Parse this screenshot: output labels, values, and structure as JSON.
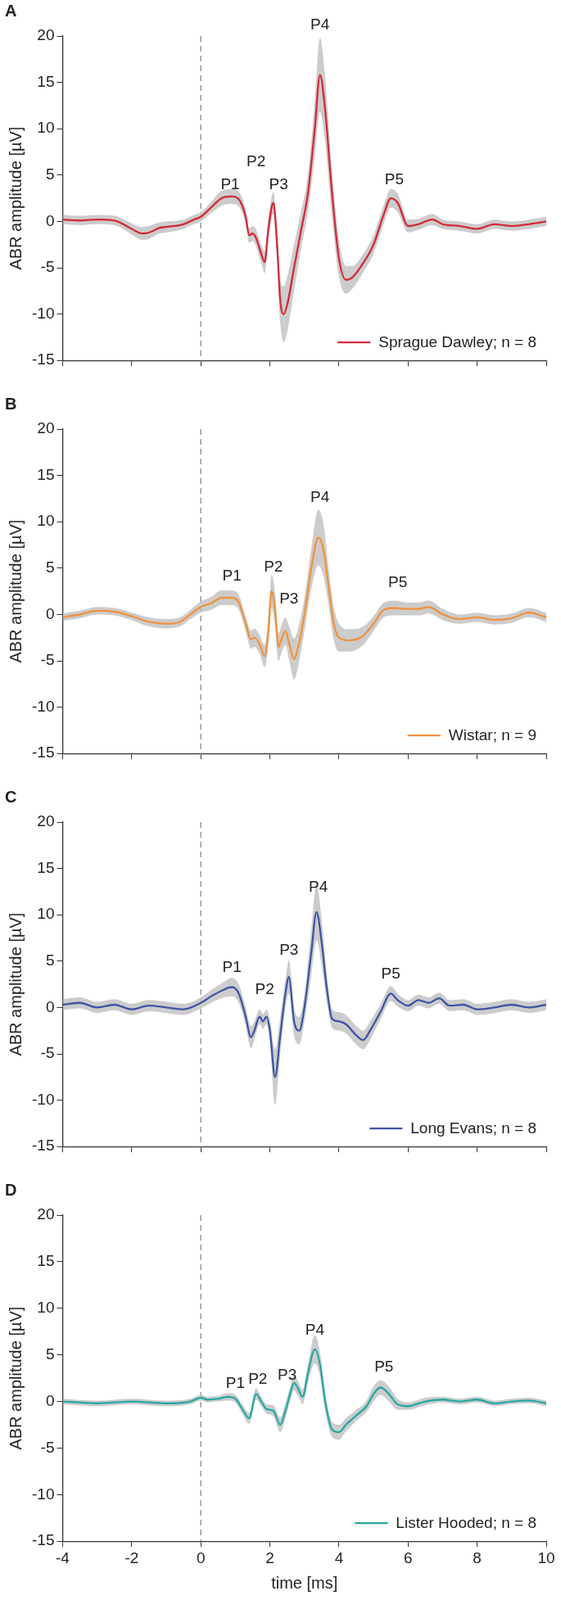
{
  "chart_data": [
    {
      "type": "line",
      "panel": "A",
      "ylabel": "ABR amplitude [µV]",
      "xlim": [
        -4,
        10
      ],
      "xticks": [
        -4,
        -2,
        0,
        2,
        4,
        6,
        8,
        10
      ],
      "ylim": [
        -15,
        20
      ],
      "yticks": [
        -15,
        -10,
        -5,
        0,
        5,
        10,
        15,
        20
      ],
      "grid": false,
      "legend": "lower right",
      "tick_labels": "y",
      "vlines": [
        0
      ],
      "x": [
        -4,
        -3.5,
        -3,
        -2.5,
        -2,
        -1.7,
        -1.5,
        -1.2,
        -1,
        -0.5,
        -0.2,
        0,
        0.3,
        0.6,
        0.9,
        1.1,
        1.3,
        1.4,
        1.5,
        1.6,
        1.75,
        1.85,
        1.95,
        2.05,
        2.1,
        2.2,
        2.3,
        2.4,
        2.5,
        2.7,
        2.9,
        3.1,
        3.3,
        3.45,
        3.6,
        3.8,
        4,
        4.2,
        4.4,
        4.7,
        5,
        5.3,
        5.5,
        5.7,
        6,
        6.3,
        6.7,
        7,
        7.5,
        8,
        8.5,
        9,
        9.5,
        10
      ],
      "series": [
        {
          "name": "Sprague Dawley; n = 8",
          "color": "#d42a36",
          "values": [
            0.2,
            0.1,
            0.2,
            0.1,
            -0.8,
            -1.3,
            -1.2,
            -0.7,
            -0.6,
            -0.3,
            0.2,
            0.5,
            1.5,
            2.5,
            2.7,
            2.4,
            0.5,
            -1.5,
            -1.3,
            -1.8,
            -3.5,
            -4.4,
            -1,
            1.5,
            2,
            -2,
            -8.5,
            -10,
            -9,
            -5,
            -1,
            3,
            10,
            15.8,
            12,
            3,
            -4,
            -6.3,
            -6,
            -4.5,
            -2.5,
            0.8,
            2.5,
            2,
            -0.5,
            -0.3,
            0.2,
            -0.3,
            -0.5,
            -0.8,
            -0.3,
            -0.5,
            -0.3,
            0
          ],
          "error": [
            0.5,
            0.5,
            0.5,
            0.5,
            0.6,
            0.7,
            0.7,
            0.6,
            0.6,
            0.5,
            0.5,
            0.5,
            0.6,
            0.8,
            0.8,
            0.8,
            0.8,
            0.8,
            0.8,
            0.9,
            1,
            1.2,
            1.2,
            1.2,
            1.2,
            1.5,
            2.5,
            3,
            3,
            2.5,
            2,
            2,
            3,
            4,
            3.5,
            2.5,
            2,
            1.5,
            1.2,
            1,
            1,
            1,
            1,
            1,
            0.7,
            0.6,
            0.6,
            0.5,
            0.5,
            0.5,
            0.5,
            0.5,
            0.5,
            0.5
          ]
        }
      ],
      "annotations": [
        {
          "text": "P1",
          "x": 0.85,
          "y": 3.8
        },
        {
          "text": "P2",
          "x": 1.6,
          "y": 6.3
        },
        {
          "text": "P3",
          "x": 2.25,
          "y": 3.8
        },
        {
          "text": "P4",
          "x": 3.45,
          "y": 21
        },
        {
          "text": "P5",
          "x": 5.6,
          "y": 4.3
        }
      ]
    },
    {
      "type": "line",
      "panel": "B",
      "ylabel": "ABR amplitude [µV]",
      "xlim": [
        -4,
        10
      ],
      "xticks": [
        -4,
        -2,
        0,
        2,
        4,
        6,
        8,
        10
      ],
      "ylim": [
        -15,
        20
      ],
      "yticks": [
        -15,
        -10,
        -5,
        0,
        5,
        10,
        15,
        20
      ],
      "grid": false,
      "legend": "lower right",
      "tick_labels": "y",
      "vlines": [
        0
      ],
      "x": [
        -4,
        -3.5,
        -3,
        -2.5,
        -2,
        -1.5,
        -1,
        -0.6,
        -0.3,
        0,
        0.3,
        0.6,
        0.9,
        1.1,
        1.3,
        1.45,
        1.55,
        1.7,
        1.85,
        1.95,
        2.05,
        2.15,
        2.25,
        2.35,
        2.45,
        2.55,
        2.7,
        2.85,
        3,
        3.2,
        3.4,
        3.55,
        3.7,
        3.85,
        4,
        4.3,
        4.7,
        5,
        5.3,
        5.6,
        6,
        6.3,
        6.6,
        7,
        7.5,
        8,
        8.5,
        9,
        9.5,
        10
      ],
      "series": [
        {
          "name": "Wistar; n = 9",
          "color": "#f0923d",
          "values": [
            -0.3,
            0,
            0.4,
            0.3,
            -0.2,
            -0.8,
            -1,
            -0.8,
            0,
            0.8,
            1.2,
            1.8,
            1.8,
            1.3,
            -1,
            -2.7,
            -2.5,
            -3.2,
            -4.5,
            -2,
            2.5,
            0.5,
            -3.5,
            -2.5,
            -1.8,
            -3,
            -4.8,
            -3,
            0,
            5,
            8.3,
            7,
            3,
            -1,
            -2.5,
            -2.8,
            -2.3,
            -1,
            0.5,
            0.7,
            0.6,
            0.6,
            0.8,
            0,
            -0.5,
            -0.3,
            -0.6,
            -0.4,
            0.2,
            -0.3
          ],
          "error": [
            0.4,
            0.4,
            0.4,
            0.4,
            0.4,
            0.5,
            0.5,
            0.5,
            0.5,
            0.6,
            0.7,
            0.8,
            0.8,
            0.8,
            0.8,
            1,
            1,
            1,
            1.2,
            1.5,
            1.8,
            1.8,
            1.5,
            1.5,
            1.5,
            1.8,
            2.2,
            2,
            1.8,
            2.2,
            3,
            2.8,
            2,
            1.8,
            1.5,
            1.2,
            1,
            0.8,
            0.8,
            0.8,
            0.7,
            0.7,
            0.7,
            0.6,
            0.5,
            0.5,
            0.5,
            0.5,
            0.5,
            0.5
          ]
        }
      ],
      "annotations": [
        {
          "text": "P1",
          "x": 0.9,
          "y": 4
        },
        {
          "text": "P2",
          "x": 2.1,
          "y": 5
        },
        {
          "text": "P3",
          "x": 2.55,
          "y": 1.5
        },
        {
          "text": "P4",
          "x": 3.45,
          "y": 12.5
        },
        {
          "text": "P5",
          "x": 5.7,
          "y": 3.3
        }
      ]
    },
    {
      "type": "line",
      "panel": "C",
      "ylabel": "ABR amplitude [µV]",
      "xlim": [
        -4,
        10
      ],
      "xticks": [
        -4,
        -2,
        0,
        2,
        4,
        6,
        8,
        10
      ],
      "ylim": [
        -15,
        20
      ],
      "yticks": [
        -15,
        -10,
        -5,
        0,
        5,
        10,
        15,
        20
      ],
      "grid": false,
      "legend": "lower right",
      "tick_labels": "y",
      "vlines": [
        0
      ],
      "x": [
        -4,
        -3.5,
        -3,
        -2.5,
        -2,
        -1.5,
        -1,
        -0.5,
        0,
        0.3,
        0.6,
        0.9,
        1.1,
        1.3,
        1.45,
        1.55,
        1.7,
        1.8,
        1.9,
        2,
        2.15,
        2.3,
        2.45,
        2.55,
        2.7,
        2.85,
        3,
        3.2,
        3.35,
        3.5,
        3.65,
        3.8,
        4,
        4.2,
        4.5,
        4.7,
        4.9,
        5.2,
        5.5,
        5.7,
        6,
        6.3,
        6.6,
        6.9,
        7.2,
        7.6,
        8,
        8.5,
        9,
        9.5,
        10
      ],
      "series": [
        {
          "name": "Long Evans; n = 8",
          "color": "#3e55a5",
          "values": [
            0.3,
            0.5,
            0,
            0.3,
            -0.2,
            0.2,
            0,
            -0.2,
            0.5,
            1.2,
            1.8,
            2.2,
            1.5,
            -1,
            -3.2,
            -2.5,
            -1,
            -1.5,
            -1,
            -2.5,
            -7.5,
            -3,
            1.5,
            3.3,
            -1.5,
            -2.5,
            0,
            6,
            10.3,
            7,
            2,
            -1.2,
            -1.5,
            -1.8,
            -3,
            -3.5,
            -2.5,
            -0.5,
            1.5,
            0.8,
            0.2,
            0.8,
            0.5,
            1,
            0.2,
            0.3,
            -0.2,
            0,
            0.3,
            0,
            0.3
          ],
          "error": [
            0.6,
            0.6,
            0.6,
            0.6,
            0.6,
            0.6,
            0.6,
            0.6,
            0.6,
            0.7,
            0.8,
            1,
            1,
            1,
            1.2,
            1,
            0.8,
            0.8,
            0.8,
            1.2,
            3,
            2,
            1.5,
            1.8,
            1.5,
            1.5,
            1.5,
            2.5,
            3,
            2.5,
            1.5,
            1,
            1,
            1,
            1,
            1,
            1,
            0.8,
            0.8,
            0.7,
            0.6,
            0.6,
            0.6,
            0.6,
            0.6,
            0.6,
            0.6,
            0.6,
            0.6,
            0.6,
            0.6
          ]
        }
      ],
      "annotations": [
        {
          "text": "P1",
          "x": 0.9,
          "y": 4.2
        },
        {
          "text": "P2",
          "x": 1.85,
          "y": 1.8
        },
        {
          "text": "P3",
          "x": 2.55,
          "y": 6
        },
        {
          "text": "P4",
          "x": 3.4,
          "y": 12.8
        },
        {
          "text": "P5",
          "x": 5.5,
          "y": 3.5
        }
      ]
    },
    {
      "type": "line",
      "panel": "D",
      "ylabel": "ABR amplitude [µV]",
      "xlabel": "time [ms]",
      "xlim": [
        -4,
        10
      ],
      "xticks": [
        -4,
        -2,
        0,
        2,
        4,
        6,
        8,
        10
      ],
      "ylim": [
        -15,
        20
      ],
      "yticks": [
        -15,
        -10,
        -5,
        0,
        5,
        10,
        15,
        20
      ],
      "grid": false,
      "legend": "lower right",
      "vlines": [
        0
      ],
      "x": [
        -4,
        -3,
        -2,
        -1,
        -0.3,
        0,
        0.2,
        0.5,
        0.8,
        1,
        1.2,
        1.4,
        1.6,
        1.75,
        1.9,
        2.1,
        2.3,
        2.45,
        2.6,
        2.7,
        2.8,
        2.95,
        3.1,
        3.3,
        3.45,
        3.6,
        3.8,
        4,
        4.2,
        4.5,
        4.8,
        5,
        5.2,
        5.4,
        5.7,
        6,
        6.5,
        7,
        7.5,
        8,
        8.5,
        9,
        9.5,
        10
      ],
      "series": [
        {
          "name": "Lister Hooded; n = 8",
          "color": "#25a9a2",
          "values": [
            0,
            -0.2,
            0,
            -0.2,
            0,
            0.4,
            0.2,
            0.3,
            0.5,
            0.3,
            -0.8,
            -1.8,
            0.8,
            0,
            -0.8,
            -1,
            -2.5,
            -1,
            1,
            2,
            1.5,
            0.5,
            3,
            5.6,
            4,
            0,
            -3,
            -3.3,
            -2.5,
            -1.5,
            -0.5,
            0.8,
            1.5,
            1,
            -0.3,
            -0.5,
            0,
            0.2,
            0,
            0.2,
            -0.2,
            0,
            0.1,
            -0.2
          ],
          "error": [
            0.3,
            0.3,
            0.3,
            0.3,
            0.3,
            0.3,
            0.3,
            0.3,
            0.4,
            0.4,
            0.5,
            0.6,
            0.6,
            0.5,
            0.5,
            0.6,
            0.8,
            0.8,
            0.8,
            0.8,
            0.8,
            0.8,
            1,
            1.5,
            1.3,
            1,
            0.8,
            0.8,
            0.7,
            0.6,
            0.6,
            0.8,
            0.8,
            0.8,
            0.6,
            0.4,
            0.4,
            0.3,
            0.3,
            0.3,
            0.3,
            0.3,
            0.3,
            0.3
          ]
        }
      ],
      "annotations": [
        {
          "text": "P1",
          "x": 1.0,
          "y": 1.8
        },
        {
          "text": "P2",
          "x": 1.65,
          "y": 2.2
        },
        {
          "text": "P3",
          "x": 2.5,
          "y": 2.7
        },
        {
          "text": "P4",
          "x": 3.3,
          "y": 7.5
        },
        {
          "text": "P5",
          "x": 5.3,
          "y": 3.5
        }
      ]
    }
  ]
}
